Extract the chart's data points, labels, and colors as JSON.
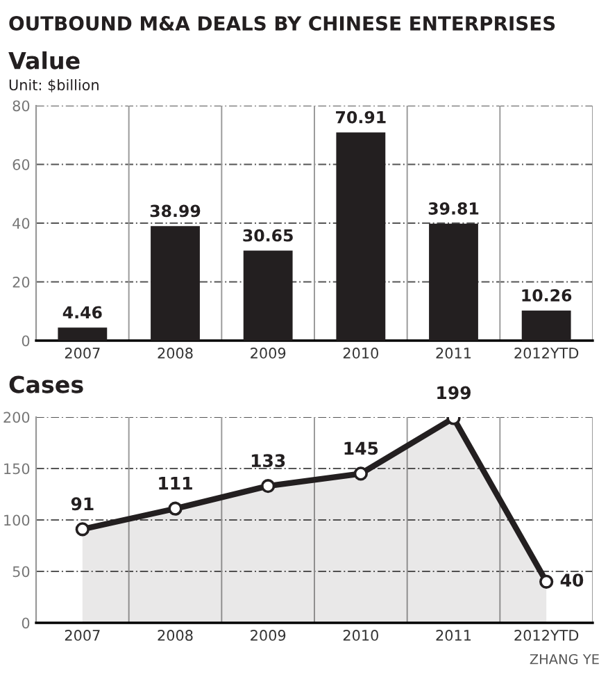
{
  "chart_data": [
    {
      "type": "bar",
      "title": "OUTBOUND M&A DEALS BY CHINESE ENTERPRISES",
      "subtitle": "Value",
      "ylabel": "Unit: $billion",
      "categories": [
        "2007",
        "2008",
        "2009",
        "2010",
        "2011",
        "2012YTD"
      ],
      "values": [
        4.46,
        38.99,
        30.65,
        70.91,
        39.81,
        10.26
      ],
      "color": "#231f20",
      "ylim": [
        0,
        80
      ],
      "yticks": [
        0,
        20,
        40,
        60,
        80
      ],
      "grid": true,
      "data_labels": true
    },
    {
      "type": "area",
      "title": "Cases",
      "categories": [
        "2007",
        "2008",
        "2009",
        "2010",
        "2011",
        "2012YTD"
      ],
      "series": [
        {
          "type": "area",
          "color": "#231f20",
          "marker": "circle",
          "values": [
            91,
            111,
            133,
            145,
            199,
            40
          ]
        }
      ],
      "ylim": [
        0,
        200
      ],
      "yticks": [
        0,
        50,
        100,
        150,
        200
      ],
      "grid": true,
      "data_labels": true,
      "annotations": [
        "ZHANG YE"
      ]
    }
  ]
}
